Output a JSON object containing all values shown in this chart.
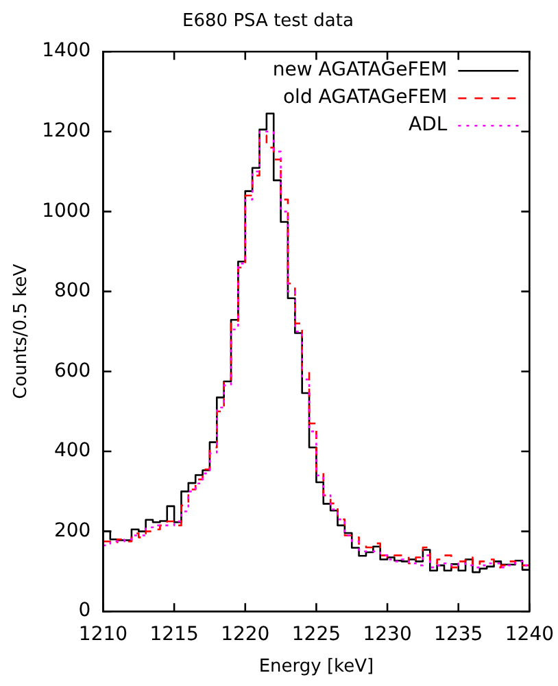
{
  "chart_data": {
    "type": "histogram",
    "title": "E680 PSA test data",
    "xlabel": "Energy [keV]",
    "ylabel": "Counts/0.5 keV",
    "bins": [
      1210,
      1210.5,
      1211,
      1211.5,
      1212,
      1212.5,
      1213,
      1213.5,
      1214,
      1214.5,
      1215,
      1215.5,
      1216,
      1216.5,
      1217,
      1217.5,
      1218,
      1218.5,
      1219,
      1219.5,
      1220,
      1220.5,
      1221,
      1221.5,
      1222,
      1222.5,
      1223,
      1223.5,
      1224,
      1224.5,
      1225,
      1225.5,
      1226,
      1226.5,
      1227,
      1227.5,
      1228,
      1228.5,
      1229,
      1229.5,
      1230,
      1230.5,
      1231,
      1231.5,
      1232,
      1232.5,
      1233,
      1233.5,
      1234,
      1234.5,
      1235,
      1235.5,
      1236,
      1236.5,
      1237,
      1237.5,
      1238,
      1238.5,
      1239,
      1239.5,
      1240
    ],
    "series": [
      {
        "name": "new AGATAGeFEM",
        "color": "#000000",
        "line_style": "solid",
        "values": [
          200,
          180,
          178,
          178,
          205,
          200,
          229,
          223,
          226,
          263,
          223,
          300,
          321,
          341,
          353,
          423,
          535,
          575,
          729,
          875,
          1051,
          1109,
          1205,
          1245,
          1078,
          974,
          783,
          696,
          546,
          410,
          323,
          269,
          252,
          215,
          196,
          159,
          139,
          148,
          162,
          130,
          135,
          127,
          125,
          130,
          125,
          154,
          102,
          115,
          102,
          118,
          102,
          130,
          98,
          107,
          112,
          125,
          117,
          117,
          127,
          104
        ]
      },
      {
        "name": "old AGATAGeFEM",
        "color": "#ff0000",
        "line_style": "dashed",
        "values": [
          175,
          170,
          180,
          175,
          195,
          185,
          200,
          205,
          215,
          225,
          215,
          265,
          305,
          330,
          355,
          410,
          500,
          580,
          720,
          860,
          1040,
          1090,
          1190,
          1160,
          1130,
          1030,
          820,
          720,
          600,
          470,
          350,
          290,
          270,
          230,
          190,
          185,
          165,
          160,
          170,
          140,
          135,
          140,
          140,
          120,
          135,
          160,
          120,
          130,
          140,
          110,
          125,
          135,
          115,
          125,
          130,
          110,
          115,
          125,
          120,
          115
        ]
      },
      {
        "name": "ADL",
        "color": "#ff00ff",
        "line_style": "dotted",
        "values": [
          165,
          175,
          175,
          180,
          190,
          190,
          210,
          215,
          215,
          215,
          225,
          250,
          300,
          320,
          345,
          395,
          510,
          565,
          705,
          870,
          1030,
          1100,
          1200,
          1200,
          1150,
          1000,
          800,
          700,
          580,
          450,
          340,
          290,
          255,
          230,
          190,
          175,
          150,
          150,
          150,
          140,
          130,
          125,
          130,
          120,
          115,
          140,
          110,
          115,
          120,
          115,
          120,
          115,
          110,
          115,
          120,
          120,
          110,
          115,
          125,
          115
        ]
      }
    ],
    "xlim": [
      1210,
      1240
    ],
    "xticks": [
      1210,
      1215,
      1220,
      1225,
      1230,
      1235,
      1240
    ],
    "ylim": [
      0,
      1400
    ],
    "yticks": [
      0,
      200,
      400,
      600,
      800,
      1000,
      1200,
      1400
    ],
    "grid": false,
    "legend": "top right"
  }
}
